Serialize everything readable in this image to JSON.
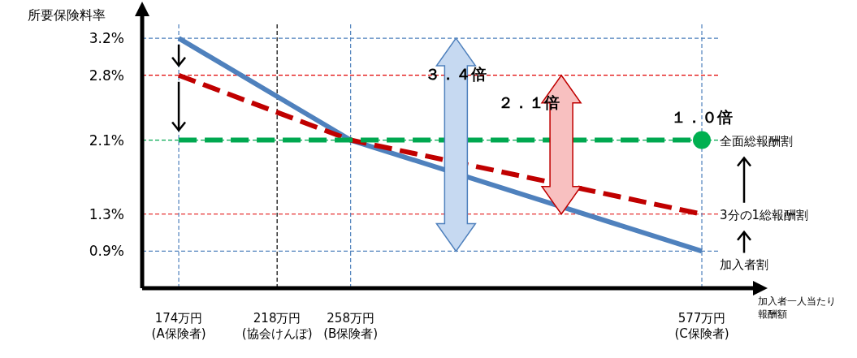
{
  "chart_data": {
    "type": "line",
    "ylabel": "所要保険料率",
    "xlabel": "加入者一人当たり報酬額",
    "log": "x",
    "x": [
      174,
      258,
      577
    ],
    "xlim": [
      160,
      600
    ],
    "ylim": [
      0.5,
      3.35
    ],
    "xticks": [
      {
        "value": 174,
        "label": "174万円\n(A保険者)"
      },
      {
        "value": 218,
        "label": "218万円\n(協会けんぽ)"
      },
      {
        "value": 258,
        "label": "258万円\n(B保険者)"
      },
      {
        "value": 577,
        "label": "577万円\n(C保険者)"
      }
    ],
    "yticks": [
      {
        "value": 0.9,
        "label": "0.9%"
      },
      {
        "value": 1.3,
        "label": "1.3%"
      },
      {
        "value": 2.1,
        "label": "2.1%"
      },
      {
        "value": 2.8,
        "label": "2.8%"
      },
      {
        "value": 3.2,
        "label": "3.2%"
      }
    ],
    "series": [
      {
        "name": "加入者割",
        "color": "#4f81bd",
        "values": [
          3.2,
          2.1,
          0.9
        ],
        "line_style": "solid"
      },
      {
        "name": "3分の1総報酬割",
        "color": "#c00000",
        "values": [
          2.8,
          2.1,
          1.3
        ],
        "line_style": "dashed"
      },
      {
        "name": "全面総報酬割",
        "color": "#00a850",
        "values": [
          2.1,
          2.1,
          2.1
        ],
        "line_style": "dashed"
      },
      {
        "type": "scatter",
        "color": "#00b050",
        "x": [
          577
        ],
        "values": [
          2.1
        ],
        "marker": "circle"
      }
    ],
    "ref_lines": [
      {
        "axis": "y",
        "value": 3.2,
        "color": "#4f81bd",
        "line_style": "dashed"
      },
      {
        "axis": "y",
        "value": 2.8,
        "color": "#e00000",
        "line_style": "dashed"
      },
      {
        "axis": "y",
        "value": 2.1,
        "color": "#00a850",
        "line_style": "dashed"
      },
      {
        "axis": "y",
        "value": 1.3,
        "color": "#e00000",
        "line_style": "dashed"
      },
      {
        "axis": "y",
        "value": 0.9,
        "color": "#4f81bd",
        "line_style": "dashed"
      },
      {
        "axis": "x",
        "value": 174,
        "color": "#4f81bd",
        "line_style": "dashed"
      },
      {
        "axis": "x",
        "value": 218,
        "color": "#000000",
        "line_style": "dashed"
      },
      {
        "axis": "x",
        "value": 258,
        "color": "#4f81bd",
        "line_style": "dashed"
      },
      {
        "axis": "x",
        "value": 577,
        "color": "#4f81bd",
        "line_style": "dashed"
      }
    ],
    "annotations": [
      "３．４倍",
      "２．１倍",
      {
        "text": "１．０倍",
        "x": 577,
        "y": 2.1
      }
    ],
    "grid": false
  }
}
